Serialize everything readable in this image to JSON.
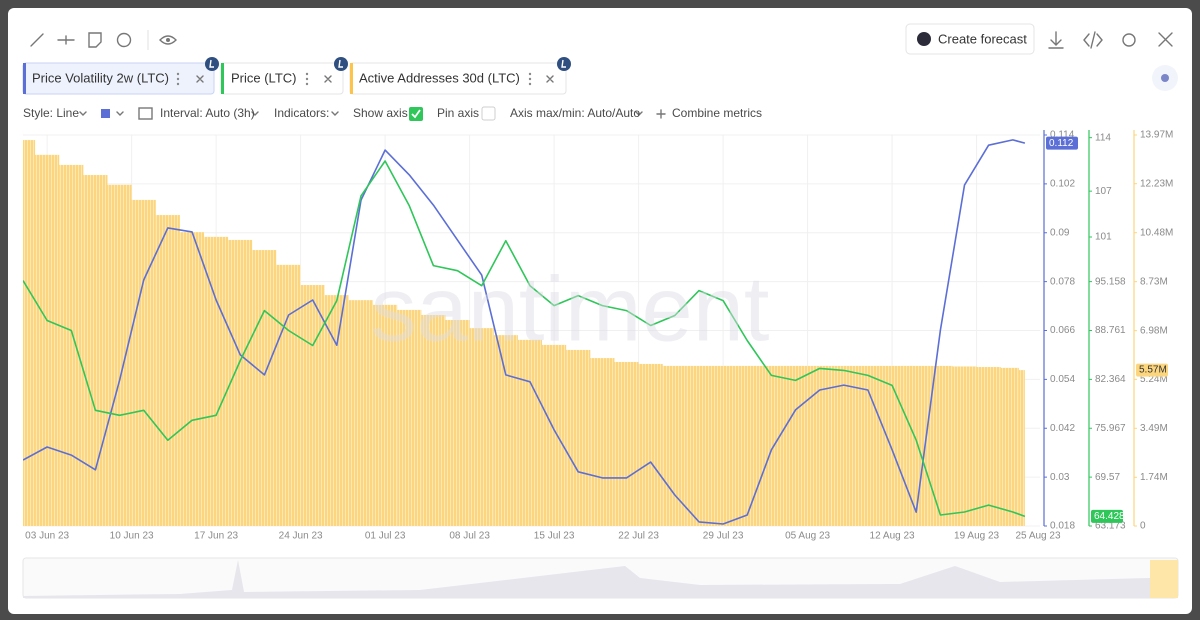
{
  "toolbar": {
    "create_forecast": "Create forecast"
  },
  "tabs": [
    "Price Volatility 2w (LTC)",
    "Price (LTC)",
    "Active Addresses 30d (LTC)"
  ],
  "controls": {
    "style": "Style: Line",
    "interval": "Interval: Auto (3h)",
    "indicators": "Indicators:",
    "show_axis": "Show axis",
    "pin_axis": "Pin axis",
    "axis_minmax": "Axis max/min: Auto/Auto",
    "combine": "Combine metrics"
  },
  "chart_data": {
    "type": "line",
    "watermark": "santiment",
    "x": [
      "2023-06-01",
      "2023-06-03",
      "2023-06-05",
      "2023-06-07",
      "2023-06-09",
      "2023-06-11",
      "2023-06-13",
      "2023-06-15",
      "2023-06-17",
      "2023-06-19",
      "2023-06-21",
      "2023-06-23",
      "2023-06-25",
      "2023-06-27",
      "2023-06-29",
      "2023-07-01",
      "2023-07-03",
      "2023-07-05",
      "2023-07-07",
      "2023-07-09",
      "2023-07-11",
      "2023-07-13",
      "2023-07-15",
      "2023-07-17",
      "2023-07-19",
      "2023-07-21",
      "2023-07-23",
      "2023-07-25",
      "2023-07-27",
      "2023-07-29",
      "2023-07-31",
      "2023-08-02",
      "2023-08-04",
      "2023-08-06",
      "2023-08-08",
      "2023-08-10",
      "2023-08-12",
      "2023-08-14",
      "2023-08-16",
      "2023-08-18",
      "2023-08-20",
      "2023-08-22",
      "2023-08-23"
    ],
    "xlim": [
      "2023-06-01",
      "2023-08-25"
    ],
    "xticks": [
      {
        "value": "2023-06-03",
        "label": "03 Jun 23"
      },
      {
        "value": "2023-06-10",
        "label": "10 Jun 23"
      },
      {
        "value": "2023-06-17",
        "label": "17 Jun 23"
      },
      {
        "value": "2023-06-24",
        "label": "24 Jun 23"
      },
      {
        "value": "2023-07-01",
        "label": "01 Jul 23"
      },
      {
        "value": "2023-07-08",
        "label": "08 Jul 23"
      },
      {
        "value": "2023-07-15",
        "label": "15 Jul 23"
      },
      {
        "value": "2023-07-22",
        "label": "22 Jul 23"
      },
      {
        "value": "2023-07-29",
        "label": "29 Jul 23"
      },
      {
        "value": "2023-08-05",
        "label": "05 Aug 23"
      },
      {
        "value": "2023-08-12",
        "label": "12 Aug 23"
      },
      {
        "value": "2023-08-19",
        "label": "19 Aug 23"
      },
      {
        "value": "2023-08-25",
        "label": "25 Aug 23"
      }
    ],
    "ylim": [
      0.018,
      0.114
    ],
    "yticks": [
      0.018,
      0.03,
      0.042,
      0.054,
      0.066,
      0.078,
      0.09,
      0.102,
      0.114
    ],
    "y2lim": [
      63.173,
      114.349
    ],
    "y2ticks": [
      63.173,
      69.57,
      75.967,
      82.364,
      88.761,
      95.158,
      101,
      107,
      114
    ],
    "y3lim": [
      0,
      13970000
    ],
    "y3ticks": [
      0,
      {
        "value": 1740000,
        "label": "1.74M"
      },
      {
        "value": 3490000,
        "label": "3.49M"
      },
      {
        "value": 5240000,
        "label": "5.24M"
      },
      {
        "value": 6980000,
        "label": "6.98M"
      },
      {
        "value": 8730000,
        "label": "8.73M"
      },
      {
        "value": 10480000,
        "label": "10.48M"
      },
      {
        "value": 12230000,
        "label": "12.23M"
      },
      {
        "value": 13970000,
        "label": "13.97M"
      }
    ],
    "grid": true,
    "series": [
      {
        "name": "Price Volatility 2w (LTC)",
        "type": "line",
        "axis": "y",
        "color": "#5b6fd6",
        "values": [
          0.0342,
          0.0374,
          0.0354,
          0.0318,
          0.0538,
          0.0784,
          0.0912,
          0.0902,
          0.0735,
          0.06,
          0.0551,
          0.0698,
          0.0735,
          0.0624,
          0.098,
          0.1103,
          0.1042,
          0.0968,
          0.0882,
          0.0796,
          0.0551,
          0.0534,
          0.0416,
          0.0313,
          0.0298,
          0.0298,
          0.0337,
          0.0256,
          0.019,
          0.0185,
          0.0207,
          0.0367,
          0.0465,
          0.0514,
          0.0526,
          0.0514,
          0.0367,
          0.0214,
          0.0661,
          0.1017,
          0.1115,
          0.1128,
          0.112
        ]
      },
      {
        "name": "Price (LTC)",
        "type": "line",
        "axis": "y2",
        "color": "#2fc65a",
        "values": [
          95.29,
          90.07,
          88.76,
          78.32,
          77.66,
          78.32,
          74.4,
          77.01,
          77.66,
          84.84,
          91.37,
          88.76,
          86.8,
          92.68,
          106.38,
          110.95,
          105.08,
          97.25,
          96.59,
          94.63,
          100.51,
          94.63,
          92.02,
          93.33,
          92.02,
          91.37,
          89.41,
          90.72,
          93.98,
          92.68,
          87.45,
          82.89,
          82.23,
          83.8,
          83.54,
          82.89,
          81.58,
          74.4,
          64.61,
          65.0,
          65.91,
          65.0,
          64.428
        ]
      },
      {
        "name": "Active Addresses 30d (LTC)",
        "type": "bar",
        "axis": "y3",
        "color": "#fcd67f",
        "values": [
          13790000,
          13260000,
          12900000,
          12540000,
          12190000,
          11650000,
          11110000,
          10500000,
          10330000,
          10220000,
          9860000,
          9330000,
          8610000,
          8250000,
          8070000,
          7900000,
          7720000,
          7540000,
          7360000,
          7070000,
          6820000,
          6650000,
          6470000,
          6290000,
          6000000,
          5860000,
          5790000,
          5720000,
          5720000,
          5720000,
          5720000,
          5720000,
          5720000,
          5720000,
          5720000,
          5720000,
          5720000,
          5720000,
          5720000,
          5700000,
          5680000,
          5650000,
          5570000
        ],
        "value_labels": [
          null,
          null,
          null,
          null,
          null,
          null,
          null,
          null,
          null,
          null,
          null,
          null,
          null,
          null,
          null,
          null,
          null,
          null,
          null,
          null,
          null,
          null,
          null,
          null,
          null,
          null,
          null,
          null,
          null,
          null,
          null,
          null,
          null,
          null,
          null,
          null,
          null,
          null,
          null,
          null,
          null,
          null,
          "5.57M"
        ]
      }
    ]
  }
}
